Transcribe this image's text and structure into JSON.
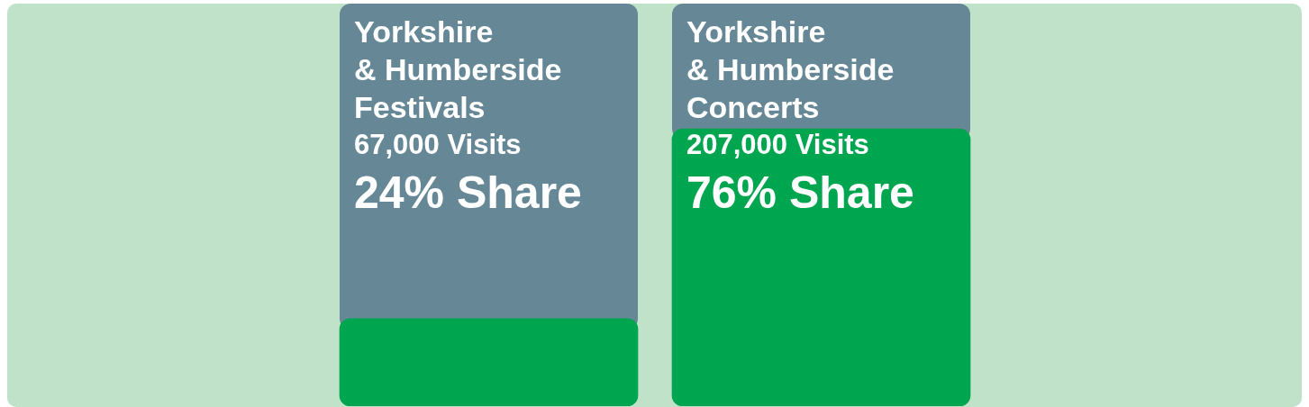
{
  "chart_data": {
    "type": "bar",
    "categories": [
      "Yorkshire\n& Humberside\nFestivals",
      "Yorkshire\n& Humberside\nConcerts"
    ],
    "values": [
      24,
      76
    ],
    "color": "#00a54f",
    "value_labels": [
      "24% Share",
      "76% Share"
    ],
    "annotations": [
      "67,000 Visits",
      "207,000 Visits"
    ]
  }
}
